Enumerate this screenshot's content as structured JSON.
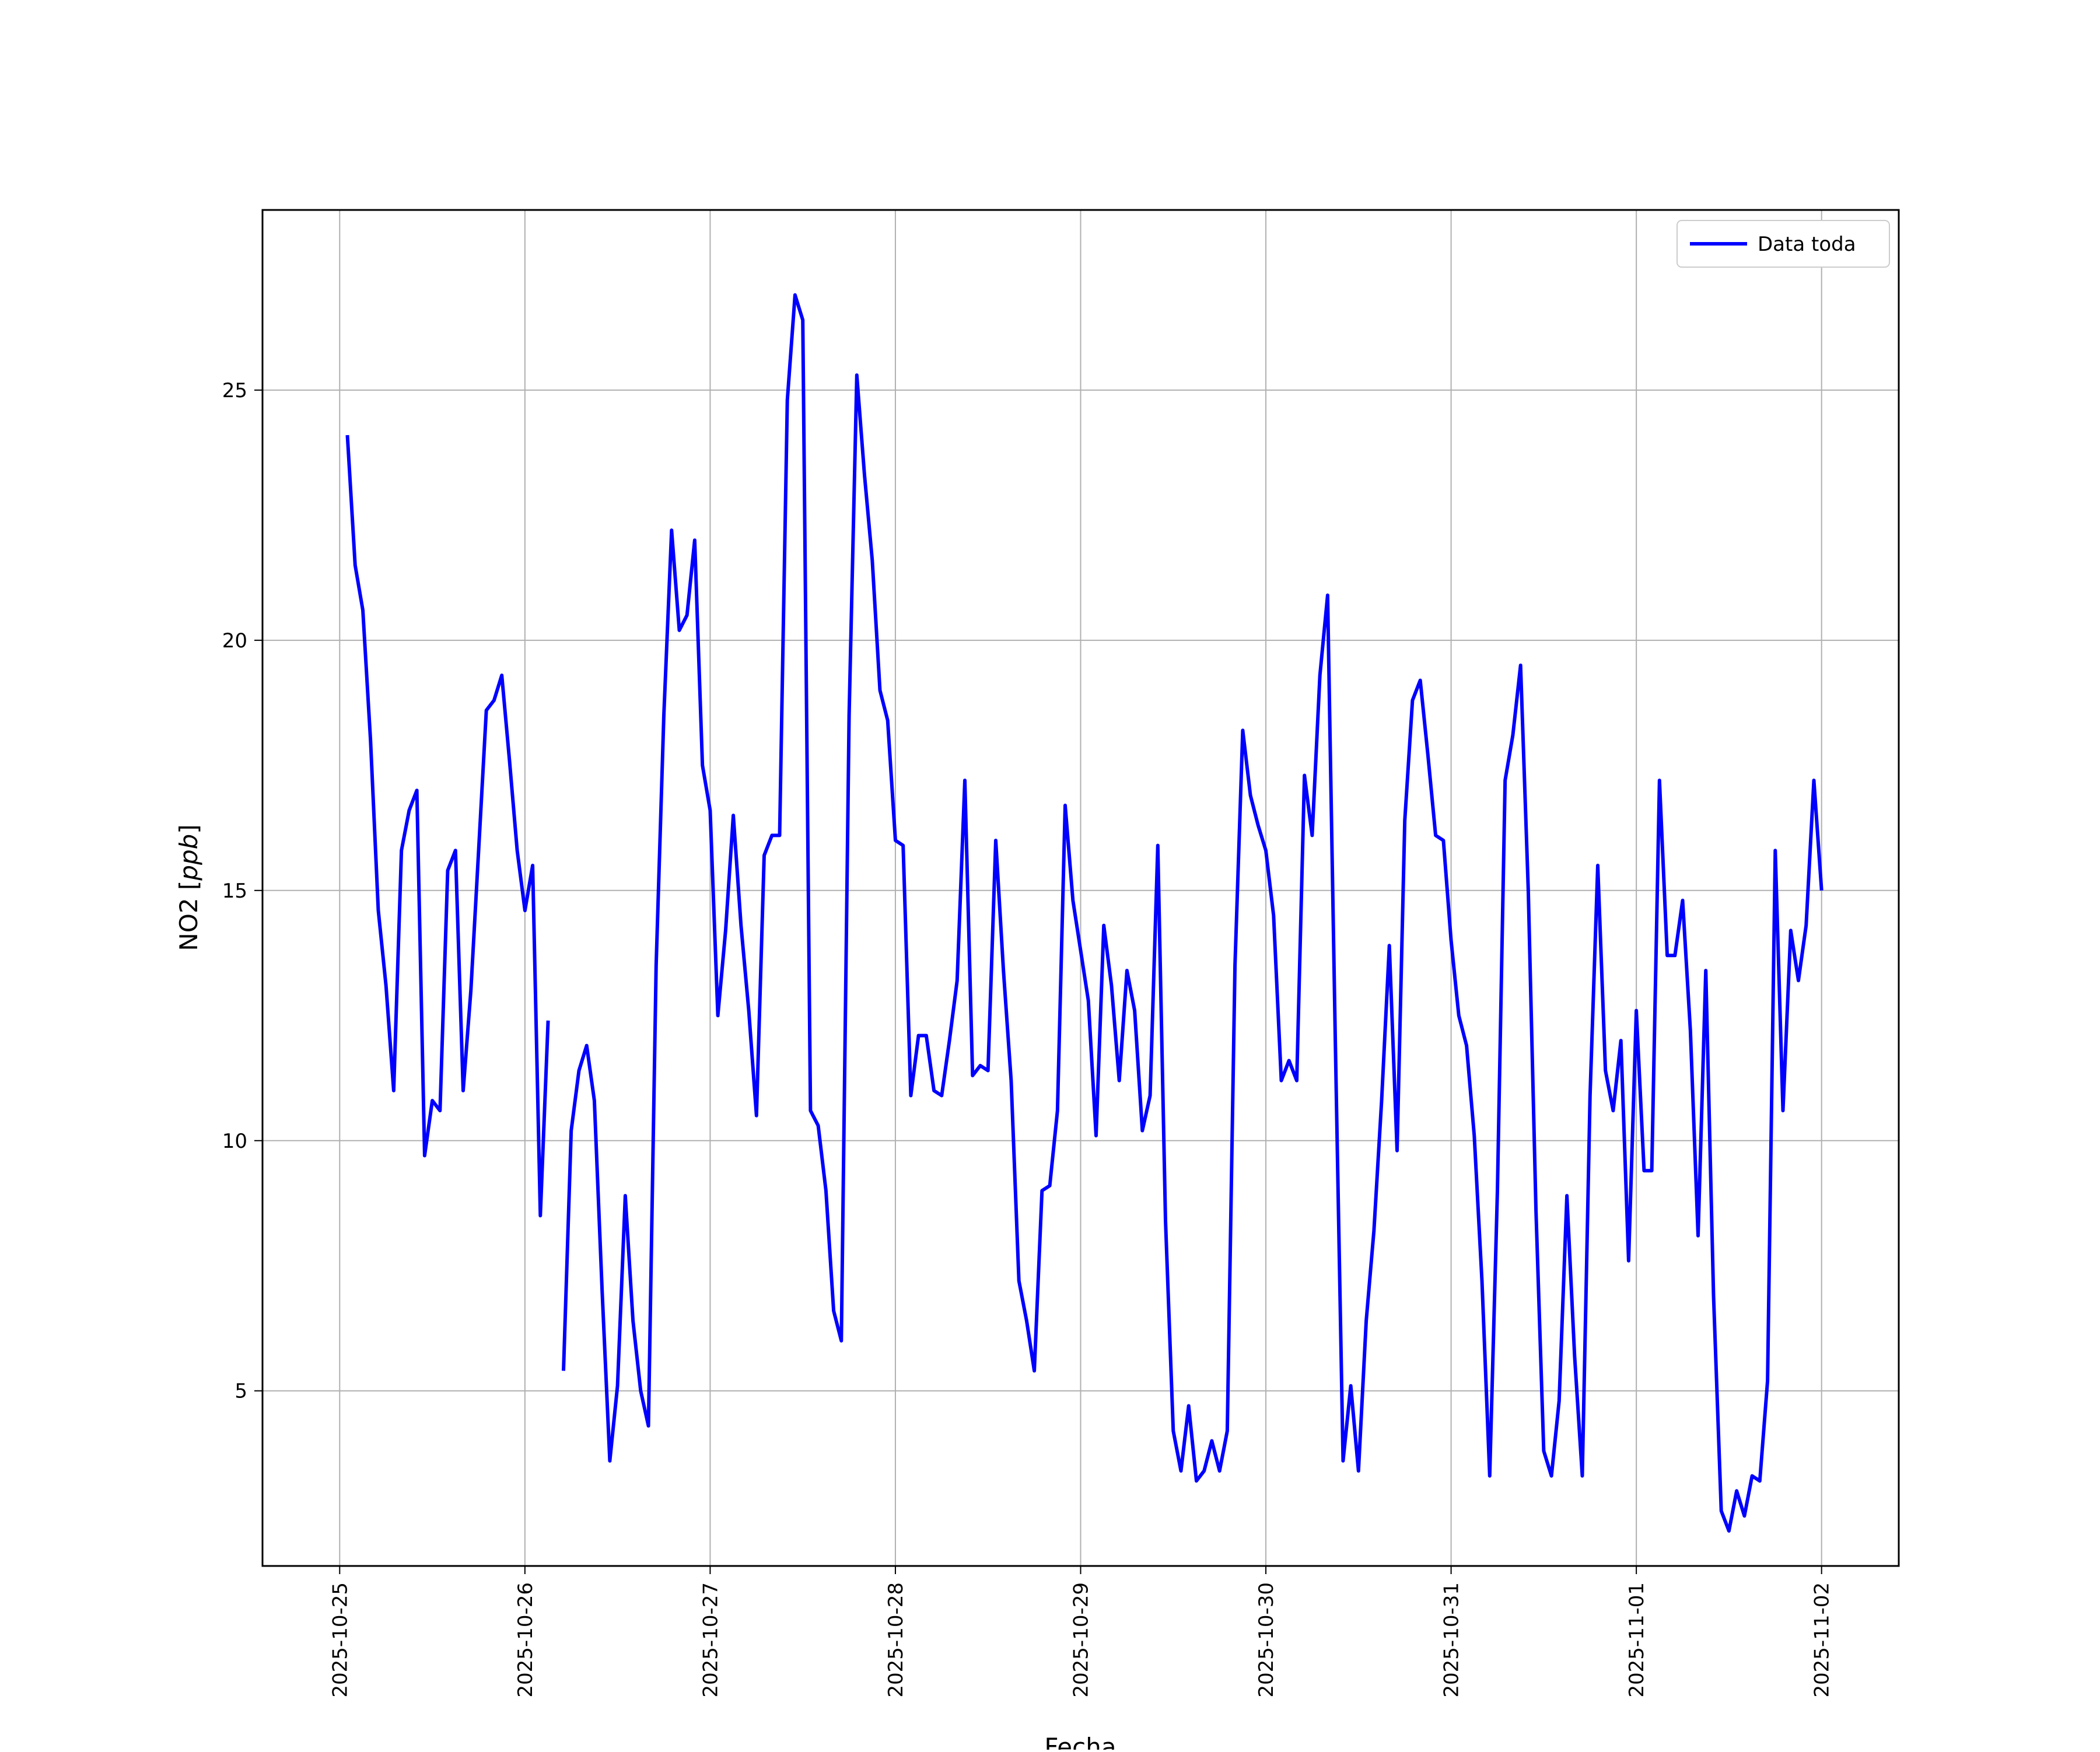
{
  "chart_data": {
    "type": "line",
    "xlabel": "Fecha",
    "ylabel": "NO2 [ppb]",
    "ylabel_main": "NO2 [",
    "ylabel_italic": "ppb",
    "ylabel_close": "]",
    "xlim": [
      "2025-10-24T14:00",
      "2025-11-02T10:00"
    ],
    "ylim": [
      1.5,
      28.6
    ],
    "grid": true,
    "legend_position": "top-right",
    "x_ticks": [
      "2025-10-25",
      "2025-10-26",
      "2025-10-27",
      "2025-10-28",
      "2025-10-29",
      "2025-10-30",
      "2025-10-31",
      "2025-11-01",
      "2025-11-02"
    ],
    "y_ticks": [
      5,
      10,
      15,
      20,
      25
    ],
    "series": [
      {
        "name": "Data toda",
        "color": "#0000ff",
        "start": "2025-10-25T01:00",
        "step_hours": 1,
        "values": [
          24.1,
          21.5,
          20.6,
          18.0,
          14.6,
          13.1,
          11.0,
          15.8,
          16.6,
          17.0,
          9.7,
          10.8,
          10.6,
          15.4,
          15.8,
          11.0,
          13.0,
          15.8,
          18.6,
          18.8,
          19.3,
          17.6,
          15.8,
          14.6,
          15.5,
          8.5,
          12.4,
          null,
          5.4,
          10.2,
          11.4,
          11.9,
          10.8,
          7.0,
          3.6,
          5.1,
          8.9,
          6.4,
          5.0,
          4.3,
          13.5,
          18.5,
          22.2,
          20.2,
          20.5,
          22.0,
          17.5,
          16.6,
          12.5,
          14.2,
          16.5,
          14.3,
          12.6,
          10.5,
          15.7,
          16.1,
          16.1,
          24.8,
          26.9,
          26.4,
          10.6,
          10.3,
          9.0,
          6.6,
          6.0,
          18.5,
          25.3,
          23.3,
          21.6,
          19.0,
          18.4,
          16.0,
          15.9,
          10.9,
          12.1,
          12.1,
          11.0,
          10.9,
          12.0,
          13.2,
          17.2,
          11.3,
          11.5,
          11.4,
          16.0,
          13.4,
          11.2,
          7.2,
          6.4,
          5.4,
          9.0,
          9.1,
          10.6,
          16.7,
          14.8,
          13.8,
          12.8,
          10.1,
          14.3,
          13.1,
          11.2,
          13.4,
          12.6,
          10.2,
          10.9,
          15.9,
          8.4,
          4.2,
          3.4,
          4.7,
          3.2,
          3.4,
          4.0,
          3.4,
          4.2,
          13.5,
          18.2,
          16.9,
          16.3,
          15.8,
          14.5,
          11.2,
          11.6,
          11.2,
          17.3,
          16.1,
          19.3,
          20.9,
          12.0,
          3.6,
          5.1,
          3.4,
          6.4,
          8.2,
          10.8,
          13.9,
          9.8,
          16.4,
          18.8,
          19.2,
          17.7,
          16.1,
          16.0,
          14.0,
          12.5,
          11.9,
          10.1,
          7.2,
          3.3,
          9.0,
          17.2,
          18.1,
          19.5,
          15.0,
          8.6,
          3.8,
          3.3,
          4.8,
          8.9,
          5.7,
          3.3,
          10.9,
          15.5,
          11.4,
          10.6,
          12.0,
          7.6,
          12.6,
          9.4,
          9.4,
          17.2,
          13.7,
          13.7,
          14.8,
          12.2,
          8.1,
          13.4,
          6.9,
          2.6,
          2.2,
          3.0,
          2.5,
          3.3,
          3.2,
          5.2,
          15.8,
          10.6,
          14.2,
          13.2,
          14.3,
          17.2,
          15.0
        ]
      }
    ]
  }
}
